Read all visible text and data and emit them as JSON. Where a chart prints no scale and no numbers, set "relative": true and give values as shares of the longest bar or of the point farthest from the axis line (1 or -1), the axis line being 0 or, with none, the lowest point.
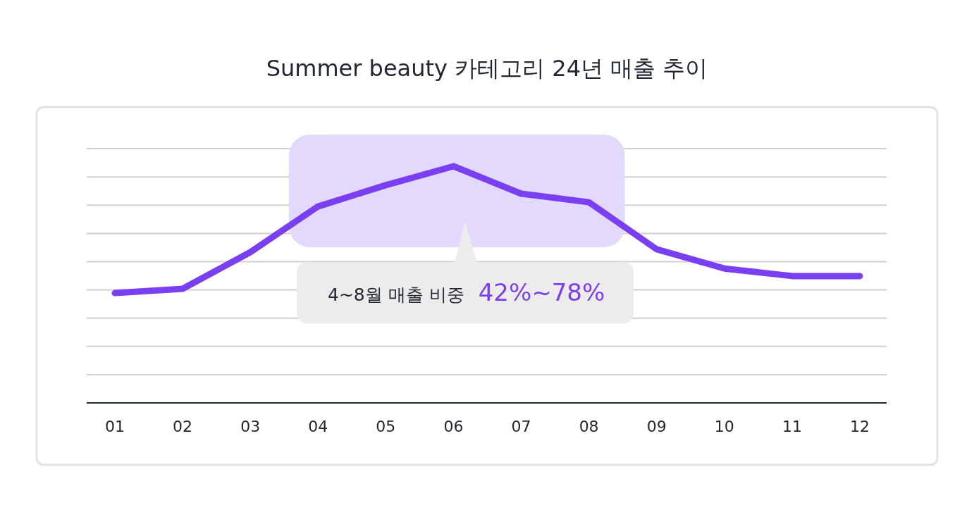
{
  "chart_data": {
    "type": "line",
    "title": "Summer beauty 카테고리 24년 매출 추이",
    "relative": true,
    "grid": "y",
    "categories": [
      "01",
      "02",
      "03",
      "04",
      "05",
      "06",
      "07",
      "08",
      "09",
      "10",
      "11",
      "12"
    ],
    "series": [
      {
        "color": "#7b3ff2",
        "values": [
          0.464,
          0.482,
          0.637,
          0.83,
          0.92,
          1,
          0.884,
          0.848,
          0.649,
          0.568,
          0.536,
          0.536
        ]
      }
    ],
    "bands": [
      {
        "axis": "x",
        "from": "04",
        "to": "08",
        "color": "#e2d9fc"
      }
    ],
    "annotations": [
      "4~8월 매출 비중",
      "42%~78%"
    ]
  }
}
